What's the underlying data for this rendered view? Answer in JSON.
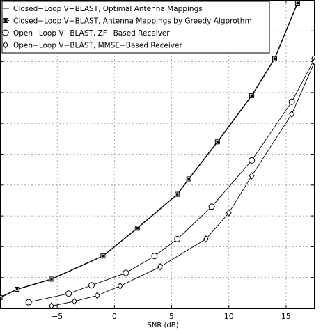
{
  "chart_data": {
    "type": "line",
    "xlabel": "SNR (dB)",
    "ylabel": "",
    "xlim": [
      -10,
      17.5
    ],
    "ylim": [
      0,
      10
    ],
    "xticks": [
      -5,
      0,
      5,
      10,
      15
    ],
    "xtick_labels": [
      "−5",
      "0",
      "5",
      "10",
      "15"
    ],
    "yticks": [
      0,
      1,
      2,
      3,
      4,
      5,
      6,
      7,
      8,
      9,
      10
    ],
    "grid": true,
    "legend_position": "top-left",
    "series": [
      {
        "name": "Closed−Loop V−BLAST, Optimal Antenna Mappings",
        "marker": "none",
        "x": [
          -10,
          -8.5,
          -5.5,
          -1,
          2,
          5.5,
          6.5,
          9,
          12,
          14,
          16
        ],
        "y": [
          0.35,
          0.62,
          0.95,
          1.7,
          2.6,
          3.7,
          4.2,
          5.4,
          6.9,
          8.1,
          9.9
        ]
      },
      {
        "name": "Closed−Loop V−BLAST, Antenna Mappings by Greedy Algprothm",
        "marker": "square-filled",
        "x": [
          -10,
          -8.5,
          -5.5,
          -1,
          2,
          5.5,
          6.5,
          9,
          12,
          14,
          16
        ],
        "y": [
          0.35,
          0.62,
          0.95,
          1.7,
          2.6,
          3.7,
          4.2,
          5.4,
          6.9,
          8.1,
          9.9
        ]
      },
      {
        "name": "Open−Loop V−BLAST, ZF−Based Receiver",
        "marker": "circle",
        "x": [
          -7.5,
          -4,
          -2,
          1,
          3.5,
          5.5,
          8.5,
          12,
          15.5,
          17.5
        ],
        "y": [
          0.2,
          0.48,
          0.75,
          1.15,
          1.7,
          2.25,
          3.3,
          4.8,
          6.7,
          8.1
        ]
      },
      {
        "name": "Open−Loop V−BLAST, MMSE−Based Receiver",
        "marker": "diamond",
        "x": [
          -5.5,
          -3.5,
          -1.5,
          0.5,
          4,
          8,
          10,
          12,
          15.5,
          17.5
        ],
        "y": [
          0.08,
          0.23,
          0.42,
          0.73,
          1.35,
          2.25,
          3.1,
          4.3,
          6.3,
          8.0
        ]
      }
    ]
  }
}
